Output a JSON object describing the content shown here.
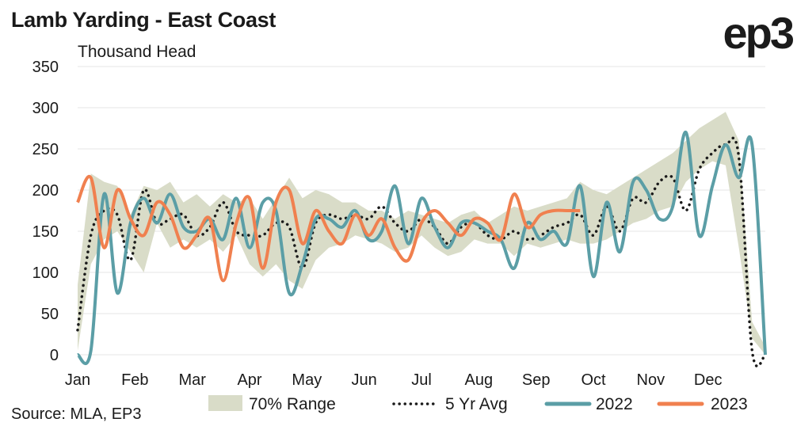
{
  "title": "Lamb Yarding - East Coast",
  "logo": "ep3",
  "source": "Source: MLA, EP3",
  "colors": {
    "range": "#d9dcc8",
    "avg": "#1a1a1a",
    "y2022": "#5b9ea6",
    "y2023": "#f0804f",
    "grid": "#e4e4e4"
  },
  "chart_data": {
    "type": "line",
    "title": "Lamb Yarding - East Coast",
    "ylabel": "Thousand Head",
    "xlabel": "",
    "ylim": [
      0,
      350
    ],
    "yticks": [
      0,
      50,
      100,
      150,
      200,
      250,
      300,
      350
    ],
    "xlim": [
      1,
      53
    ],
    "months": [
      "Jan",
      "Feb",
      "Mar",
      "Apr",
      "May",
      "Jun",
      "Jul",
      "Aug",
      "Sep",
      "Oct",
      "Nov",
      "Dec"
    ],
    "grid": true,
    "legend_position": "bottom",
    "legend": [
      "70% Range",
      "5 Yr Avg",
      "2022",
      "2023"
    ],
    "series": [
      {
        "name": "70% Range",
        "style": "band",
        "x": [
          1,
          2,
          3,
          4,
          5,
          6,
          7,
          8,
          9,
          10,
          11,
          12,
          13,
          14,
          15,
          16,
          17,
          18,
          19,
          20,
          21,
          22,
          23,
          24,
          25,
          26,
          27,
          28,
          29,
          30,
          31,
          32,
          33,
          34,
          35,
          36,
          37,
          38,
          39,
          40,
          41,
          42,
          43,
          44,
          45,
          46,
          47,
          48,
          49,
          50,
          51,
          52,
          53
        ],
        "low": [
          5,
          110,
          140,
          150,
          125,
          100,
          160,
          130,
          140,
          130,
          140,
          125,
          145,
          110,
          95,
          110,
          90,
          80,
          115,
          130,
          135,
          145,
          140,
          135,
          125,
          130,
          145,
          130,
          120,
          125,
          140,
          135,
          135,
          120,
          135,
          130,
          135,
          140,
          135,
          135,
          140,
          150,
          160,
          165,
          175,
          180,
          210,
          225,
          235,
          230,
          130,
          20,
          0
        ],
        "high": [
          85,
          220,
          210,
          205,
          170,
          205,
          200,
          210,
          185,
          195,
          180,
          195,
          185,
          190,
          165,
          190,
          215,
          190,
          200,
          195,
          185,
          185,
          175,
          175,
          165,
          175,
          170,
          165,
          160,
          170,
          175,
          160,
          170,
          180,
          175,
          180,
          185,
          190,
          210,
          200,
          195,
          205,
          215,
          225,
          235,
          245,
          260,
          275,
          285,
          295,
          260,
          40,
          10
        ]
      },
      {
        "name": "5 Yr Avg",
        "style": "dotted",
        "x": [
          1,
          2,
          3,
          4,
          5,
          6,
          7,
          8,
          9,
          10,
          11,
          12,
          13,
          14,
          15,
          16,
          17,
          18,
          19,
          20,
          21,
          22,
          23,
          24,
          25,
          26,
          27,
          28,
          29,
          30,
          31,
          32,
          33,
          34,
          35,
          36,
          37,
          38,
          39,
          40,
          41,
          42,
          43,
          44,
          45,
          46,
          47,
          48,
          49,
          50,
          51,
          52,
          53
        ],
        "y": [
          30,
          145,
          175,
          170,
          115,
          200,
          160,
          165,
          170,
          145,
          155,
          185,
          150,
          145,
          145,
          160,
          155,
          105,
          160,
          170,
          165,
          170,
          165,
          180,
          160,
          150,
          165,
          155,
          135,
          155,
          160,
          145,
          140,
          150,
          140,
          145,
          155,
          160,
          170,
          145,
          180,
          150,
          190,
          185,
          210,
          215,
          175,
          225,
          245,
          255,
          240,
          5,
          0
        ]
      },
      {
        "name": "2022",
        "style": "solid",
        "x": [
          1,
          2,
          3,
          4,
          5,
          6,
          7,
          8,
          9,
          10,
          11,
          12,
          13,
          14,
          15,
          16,
          17,
          18,
          19,
          20,
          21,
          22,
          23,
          24,
          25,
          26,
          27,
          28,
          29,
          30,
          31,
          32,
          33,
          34,
          35,
          36,
          37,
          38,
          39,
          40,
          41,
          42,
          43,
          44,
          45,
          46,
          47,
          48,
          49,
          50,
          51,
          52,
          53
        ],
        "y": [
          0,
          5,
          195,
          75,
          160,
          190,
          160,
          195,
          155,
          150,
          165,
          140,
          190,
          130,
          185,
          175,
          75,
          110,
          165,
          165,
          155,
          175,
          140,
          150,
          205,
          135,
          190,
          155,
          130,
          160,
          160,
          150,
          140,
          105,
          160,
          140,
          150,
          135,
          205,
          95,
          185,
          125,
          210,
          200,
          165,
          180,
          270,
          145,
          205,
          255,
          215,
          255,
          0
        ]
      },
      {
        "name": "2023",
        "style": "solid",
        "x": [
          1,
          2,
          3,
          4,
          5,
          6,
          7,
          8,
          9,
          10,
          11,
          12,
          13,
          14,
          15,
          16,
          17,
          18,
          19,
          20,
          21,
          22,
          23,
          24,
          25,
          26,
          27,
          28,
          29,
          30,
          31,
          32,
          33,
          34,
          35,
          36,
          37,
          38,
          39
        ],
        "y": [
          185,
          215,
          130,
          200,
          165,
          145,
          185,
          170,
          130,
          145,
          165,
          90,
          160,
          190,
          105,
          185,
          200,
          135,
          175,
          150,
          135,
          170,
          145,
          165,
          130,
          115,
          160,
          175,
          160,
          145,
          165,
          160,
          140,
          195,
          155,
          170,
          175,
          175,
          175
        ]
      }
    ]
  }
}
